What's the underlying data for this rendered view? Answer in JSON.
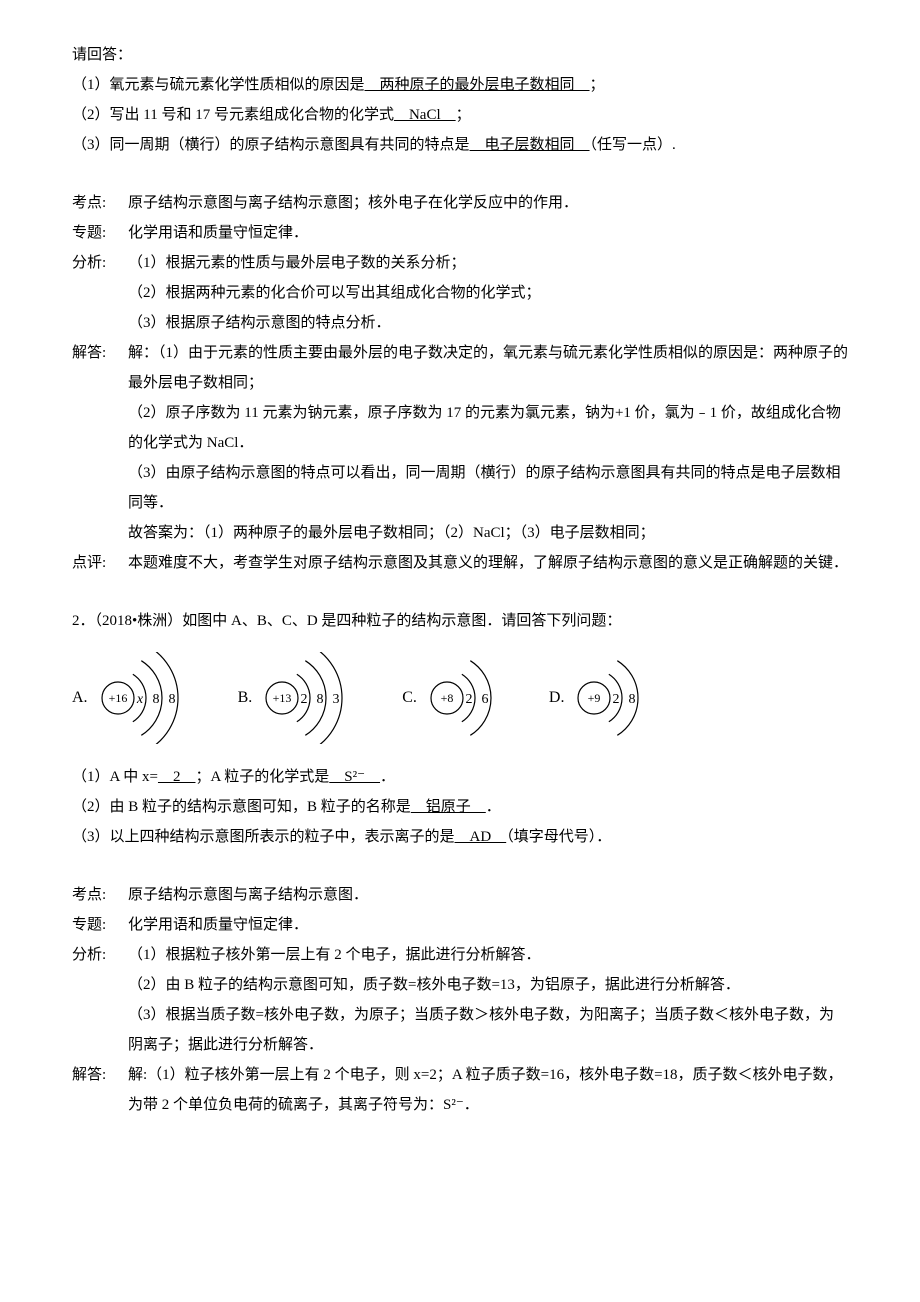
{
  "p1": "请回答：",
  "q1": {
    "pre": "（1）氧元素与硫元素化学性质相似的原因是",
    "ans": "　两种原子的最外层电子数相同　",
    "suf": "；"
  },
  "q2": {
    "pre": "（2）写出 11 号和 17 号元素组成化合物的化学式",
    "ans": "　NaCl　",
    "suf": "；"
  },
  "q3": {
    "pre": "（3）同一周期（横行）的原子结构示意图具有共同的特点是",
    "ans": "　电子层数相同　",
    "suf": "（任写一点）."
  },
  "kaodianL": "考点:",
  "kaodianC": "原子结构示意图与离子结构示意图；核外电子在化学反应中的作用．",
  "zhuantiL": "专题:",
  "zhuantiC": "化学用语和质量守恒定律．",
  "fenxiL": "分析:",
  "fenxi1": "（1）根据元素的性质与最外层电子数的关系分析；",
  "fenxi2": "（2）根据两种元素的化合价可以写出其组成化合物的化学式；",
  "fenxi3": "（3）根据原子结构示意图的特点分析．",
  "jiedaL": "解答:",
  "jieda1": "解：（1）由于元素的性质主要由最外层的电子数决定的，氧元素与硫元素化学性质相似的原因是：两种原子的最外层电子数相同；",
  "jieda2": "（2）原子序数为 11 元素为钠元素，原子序数为 17 的元素为氯元素，钠为+1 价，氯为﹣1 价，故组成化合物的化学式为 NaCl．",
  "jieda3": "（3）由原子结构示意图的特点可以看出，同一周期（横行）的原子结构示意图具有共同的特点是电子层数相同等．",
  "jieda4": "故答案为：（1）两种原子的最外层电子数相同；（2）NaCl；（3）电子层数相同；",
  "dianpingL": "点评:",
  "dianpingC": "本题难度不大，考查学生对原子结构示意图及其意义的理解，了解原子结构示意图的意义是正确解题的关键．",
  "p2title": "2．（2018•株洲）如图中 A、B、C、D 是四种粒子的结构示意图．请回答下列问题：",
  "diagram": {
    "items": [
      {
        "label": "A.",
        "nucleus": "+16",
        "shells": [
          "x",
          "8",
          "8"
        ]
      },
      {
        "label": "B.",
        "nucleus": "+13",
        "shells": [
          "2",
          "8",
          "3"
        ]
      },
      {
        "label": "C.",
        "nucleus": "+8",
        "shells": [
          "2",
          "6"
        ]
      },
      {
        "label": "D.",
        "nucleus": "+9",
        "shells": [
          "2",
          "8"
        ]
      }
    ],
    "stroke": "#000000",
    "stroke_width": 1.2,
    "nucleus_radius": 16,
    "font_size": 14
  },
  "p2q1": {
    "pre": "（1）A 中 x=",
    "ans1": "　2　",
    "mid": "；A 粒子的化学式是",
    "ans2": "　S²⁻　",
    "suf": "．"
  },
  "p2q2": {
    "pre": "（2）由 B 粒子的结构示意图可知，B 粒子的名称是",
    "ans": "　铝原子　",
    "suf": "．"
  },
  "p2q3": {
    "pre": "（3）以上四种结构示意图所表示的粒子中，表示离子的是",
    "ans": "　AD　",
    "suf": "（填字母代号）．"
  },
  "kaodian2L": "考点:",
  "kaodian2C": "原子结构示意图与离子结构示意图．",
  "zhuanti2L": "专题:",
  "zhuanti2C": "化学用语和质量守恒定律．",
  "fenxi2L": "分析:",
  "fenxi2a": "（1）根据粒子核外第一层上有 2 个电子，据此进行分析解答．",
  "fenxi2b": "（2）由 B 粒子的结构示意图可知，质子数=核外电子数=13，为铝原子，据此进行分析解答．",
  "fenxi2c": "（3）根据当质子数=核外电子数，为原子；当质子数＞核外电子数，为阳离子；当质子数＜核外电子数，为阴离子；据此进行分析解答．",
  "jieda2L": "解答:",
  "jieda2a": "解:（1）粒子核外第一层上有 2 个电子，则 x=2；A 粒子质子数=16，核外电子数=18，质子数＜核外电子数，为带 2 个单位负电荷的硫离子，其离子符号为：S²⁻．"
}
